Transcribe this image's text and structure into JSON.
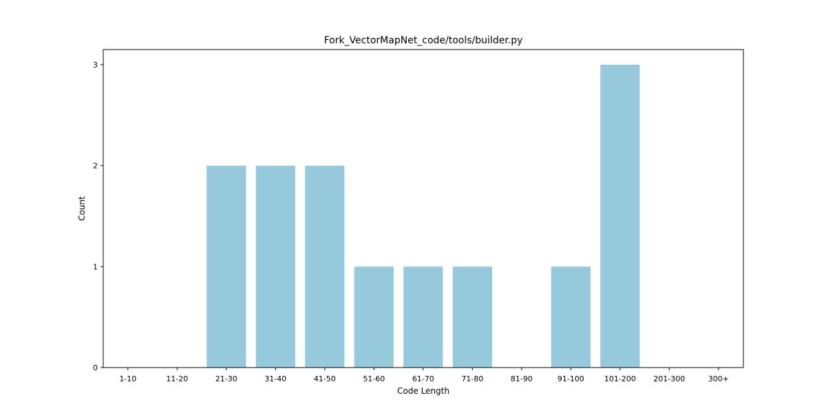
{
  "chart_data": {
    "type": "bar",
    "title": "Fork_VectorMapNet_code/tools/builder.py",
    "xlabel": "Code Length",
    "ylabel": "Count",
    "categories": [
      "1-10",
      "11-20",
      "21-30",
      "31-40",
      "41-50",
      "51-60",
      "61-70",
      "71-80",
      "81-90",
      "91-100",
      "101-200",
      "201-300",
      "300+"
    ],
    "values": [
      0,
      0,
      2,
      2,
      2,
      1,
      1,
      1,
      0,
      1,
      3,
      0,
      0
    ],
    "yticks": [
      0,
      1,
      2,
      3
    ],
    "ylim": [
      0,
      3.15
    ],
    "grid": false,
    "bar_color": "#96c9dc"
  }
}
